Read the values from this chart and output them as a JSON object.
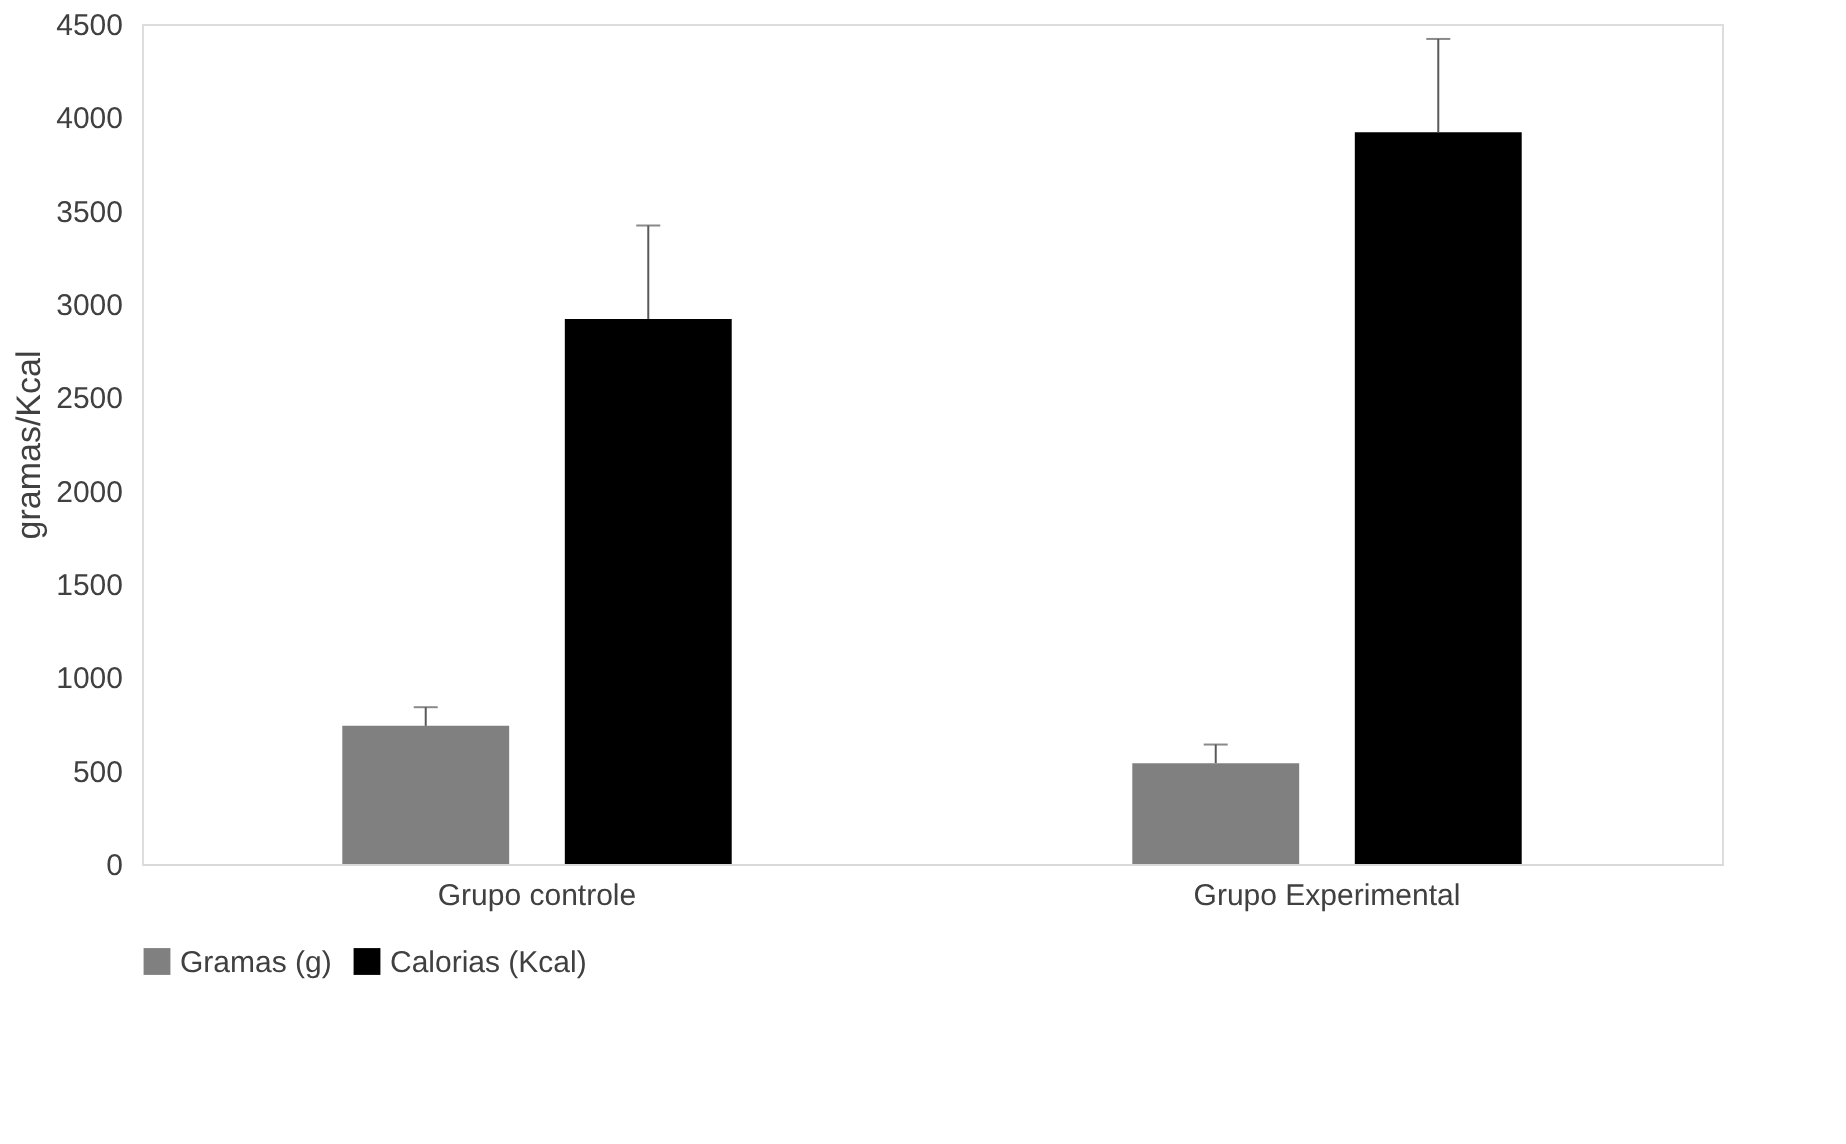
{
  "chart_data": {
    "type": "bar",
    "ylabel": "gramas/Kcal",
    "categories": [
      "Grupo controle",
      "Grupo Experimental"
    ],
    "series": [
      {
        "name": "Gramas (g)",
        "color": "#808080",
        "values": [
          740,
          540
        ],
        "errors": [
          [
            740,
            840
          ],
          [
            540,
            640
          ]
        ]
      },
      {
        "name": "Calorias (Kcal)",
        "color": "#000000",
        "values": [
          2920,
          3920
        ],
        "errors": [
          [
            2920,
            3420
          ],
          [
            3920,
            4420
          ]
        ]
      }
    ],
    "ylim": [
      0,
      4500
    ],
    "yticks": [
      0,
      500,
      1000,
      1500,
      2000,
      2500,
      3000,
      3500,
      4000,
      4500
    ],
    "grid": false,
    "legend": "bottom"
  }
}
